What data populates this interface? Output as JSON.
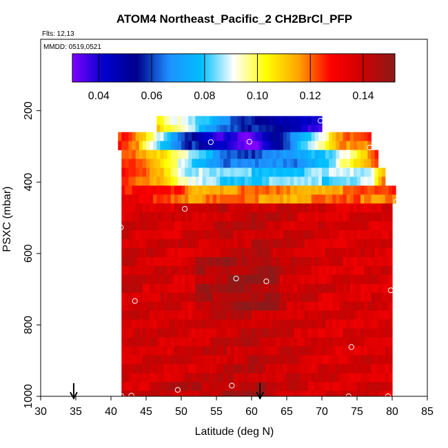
{
  "chart_data": {
    "type": "heatmap",
    "title": "ATOM4 Northeast_Pacific_2 CH2BrCl_PFP",
    "subtitle_flights": "Flts: 12,13",
    "subtitle_dates": "MMDD: 0519,0521",
    "xlabel": "Latitude (deg N)",
    "ylabel": "PSXC (mbar)",
    "xlim": [
      30,
      85
    ],
    "ylim": [
      1000,
      0
    ],
    "x_ticks": [
      30,
      35,
      40,
      45,
      50,
      55,
      60,
      65,
      70,
      75,
      80,
      85
    ],
    "x_tick_labels": [
      "30",
      "35",
      "40",
      "45",
      "50",
      "55",
      "60",
      "65",
      "70",
      "75",
      "80",
      "85"
    ],
    "y_ticks": [
      200,
      400,
      600,
      800,
      1000
    ],
    "y_tick_labels": [
      "200",
      "400",
      "600",
      "800",
      "1000"
    ],
    "colorbar": {
      "range": [
        0.03,
        0.152
      ],
      "ticks": [
        0.04,
        0.06,
        0.08,
        0.1,
        0.12,
        0.14
      ],
      "tick_labels": [
        "0.04",
        "0.06",
        "0.08",
        "0.10",
        "0.12",
        "0.14"
      ],
      "colors": [
        "#7f00ff",
        "#0000cd",
        "#00008b",
        "#1e90ff",
        "#00bfff",
        "#ffffff",
        "#ffff00",
        "#ffa500",
        "#ff0000",
        "#cd0000",
        "#8b1a1a"
      ]
    },
    "bands": [
      {
        "p_top": 215,
        "p_bot": 260,
        "x0": 46.5,
        "x1": 70.0,
        "stops": [
          [
            46.5,
            0.11
          ],
          [
            48.5,
            0.1
          ],
          [
            52,
            0.085
          ],
          [
            56,
            0.07
          ],
          [
            60,
            0.062
          ],
          [
            65,
            0.05
          ],
          [
            70,
            0.04
          ]
        ]
      },
      {
        "p_top": 260,
        "p_bot": 310,
        "x0": 41.0,
        "x1": 77.0,
        "stops": [
          [
            41,
            0.13
          ],
          [
            44,
            0.115
          ],
          [
            46,
            0.095
          ],
          [
            50,
            0.07
          ],
          [
            54,
            0.045
          ],
          [
            57,
            0.04
          ],
          [
            59.5,
            0.03
          ],
          [
            62,
            0.045
          ],
          [
            64,
            0.06
          ],
          [
            67,
            0.08
          ],
          [
            70,
            0.095
          ],
          [
            73,
            0.12
          ],
          [
            77,
            0.125
          ]
        ]
      },
      {
        "p_top": 310,
        "p_bot": 360,
        "x0": 41.5,
        "x1": 78.0,
        "stops": [
          [
            41.5,
            0.13
          ],
          [
            45,
            0.12
          ],
          [
            49,
            0.1
          ],
          [
            52,
            0.085
          ],
          [
            56,
            0.07
          ],
          [
            60,
            0.065
          ],
          [
            66,
            0.07
          ],
          [
            70,
            0.085
          ],
          [
            74,
            0.1
          ],
          [
            78,
            0.125
          ]
        ]
      },
      {
        "p_top": 360,
        "p_bot": 410,
        "x0": 41.5,
        "x1": 79.0,
        "stops": [
          [
            41.5,
            0.13
          ],
          [
            44,
            0.125
          ],
          [
            47,
            0.12
          ],
          [
            50,
            0.095
          ],
          [
            55,
            0.085
          ],
          [
            62,
            0.085
          ],
          [
            68,
            0.085
          ],
          [
            74,
            0.09
          ],
          [
            77,
            0.095
          ],
          [
            79,
            0.12
          ]
        ]
      },
      {
        "p_top": 410,
        "p_bot": 460,
        "x0": 41.5,
        "x1": 80.5,
        "stops": [
          [
            41.5,
            0.133
          ],
          [
            45,
            0.13
          ],
          [
            48,
            0.128
          ],
          [
            50,
            0.125
          ],
          [
            52,
            0.12
          ],
          [
            60,
            0.12
          ],
          [
            70,
            0.12
          ],
          [
            80.5,
            0.125
          ]
        ]
      },
      {
        "p_top": 460,
        "p_bot": 1000,
        "x0": 41.5,
        "x1": 80.0,
        "stops": [
          [
            41.5,
            0.142
          ],
          [
            50,
            0.14
          ],
          [
            60,
            0.145
          ],
          [
            70,
            0.14
          ],
          [
            80,
            0.14
          ]
        ]
      }
    ],
    "points": [
      {
        "x": 69.8,
        "y": 228
      },
      {
        "x": 54.2,
        "y": 288
      },
      {
        "x": 59.7,
        "y": 287
      },
      {
        "x": 76.8,
        "y": 303
      },
      {
        "x": 80.6,
        "y": 455
      },
      {
        "x": 50.5,
        "y": 475
      },
      {
        "x": 41.4,
        "y": 527
      },
      {
        "x": 57.8,
        "y": 670
      },
      {
        "x": 62.1,
        "y": 678
      },
      {
        "x": 79.8,
        "y": 703
      },
      {
        "x": 43.4,
        "y": 733
      },
      {
        "x": 74.2,
        "y": 862
      },
      {
        "x": 49.5,
        "y": 982
      },
      {
        "x": 57.2,
        "y": 970
      },
      {
        "x": 41.5,
        "y": 1000
      },
      {
        "x": 42.9,
        "y": 998
      },
      {
        "x": 73.8,
        "y": 1000
      },
      {
        "x": 79.4,
        "y": 1000
      }
    ],
    "arrows": [
      {
        "x": 34.7
      },
      {
        "x": 61.2
      }
    ]
  }
}
